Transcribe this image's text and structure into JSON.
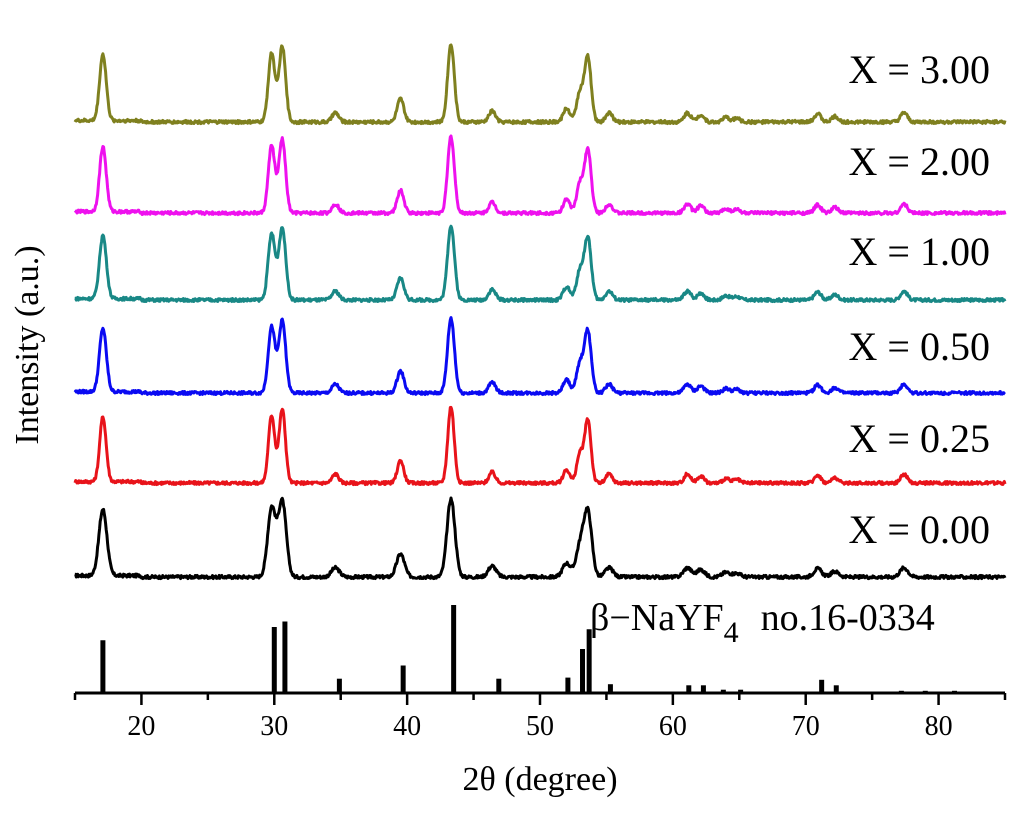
{
  "chart_data": {
    "type": "line",
    "title": "",
    "xlabel": "2θ (degree)",
    "ylabel": "Intensity (a.u.)",
    "xlim": [
      15,
      85
    ],
    "xticks": [
      20,
      30,
      40,
      50,
      60,
      70,
      80
    ],
    "peaks": [
      {
        "pos": 17.1,
        "h": 0.72
      },
      {
        "pos": 29.8,
        "h": 0.75
      },
      {
        "pos": 30.6,
        "h": 0.82
      },
      {
        "pos": 34.6,
        "h": 0.1
      },
      {
        "pos": 39.5,
        "h": 0.25
      },
      {
        "pos": 43.3,
        "h": 0.85
      },
      {
        "pos": 46.4,
        "h": 0.12
      },
      {
        "pos": 52.0,
        "h": 0.15
      },
      {
        "pos": 53.0,
        "h": 0.32
      },
      {
        "pos": 53.6,
        "h": 0.7
      },
      {
        "pos": 55.2,
        "h": 0.1
      },
      {
        "pos": 61.1,
        "h": 0.1
      },
      {
        "pos": 62.1,
        "h": 0.08
      },
      {
        "pos": 64.0,
        "h": 0.05
      },
      {
        "pos": 64.8,
        "h": 0.04
      },
      {
        "pos": 70.9,
        "h": 0.09
      },
      {
        "pos": 72.2,
        "h": 0.06
      },
      {
        "pos": 77.4,
        "h": 0.1
      }
    ],
    "series": [
      {
        "name": "X = 0.00",
        "color": "#000000",
        "width_deg": 0.3
      },
      {
        "name": "X = 0.25",
        "color": "#e8131a",
        "width_deg": 0.24
      },
      {
        "name": "X = 0.50",
        "color": "#0a0af2",
        "width_deg": 0.26
      },
      {
        "name": "X = 1.00",
        "color": "#198886",
        "width_deg": 0.26
      },
      {
        "name": "X = 2.00",
        "color": "#ee11ee",
        "width_deg": 0.25
      },
      {
        "name": "X = 3.00",
        "color": "#7f801f",
        "width_deg": 0.25
      }
    ],
    "reference": {
      "label_prefix": "β−NaYF",
      "label_subscript": "4",
      "label_suffix": "no.16-0334",
      "color": "#000000",
      "lines": [
        {
          "pos": 17.1,
          "h": 0.48
        },
        {
          "pos": 30.0,
          "h": 0.6
        },
        {
          "pos": 30.8,
          "h": 0.65
        },
        {
          "pos": 34.9,
          "h": 0.13
        },
        {
          "pos": 39.7,
          "h": 0.25
        },
        {
          "pos": 43.5,
          "h": 0.8
        },
        {
          "pos": 46.9,
          "h": 0.13
        },
        {
          "pos": 52.1,
          "h": 0.14
        },
        {
          "pos": 53.2,
          "h": 0.4
        },
        {
          "pos": 53.7,
          "h": 0.58
        },
        {
          "pos": 55.3,
          "h": 0.08
        },
        {
          "pos": 61.2,
          "h": 0.07
        },
        {
          "pos": 62.3,
          "h": 0.07
        },
        {
          "pos": 63.8,
          "h": 0.03
        },
        {
          "pos": 65.1,
          "h": 0.03
        },
        {
          "pos": 71.2,
          "h": 0.12
        },
        {
          "pos": 72.3,
          "h": 0.07
        },
        {
          "pos": 77.2,
          "h": 0.02
        },
        {
          "pos": 79.0,
          "h": 0.02
        },
        {
          "pos": 81.2,
          "h": 0.02
        }
      ]
    }
  }
}
